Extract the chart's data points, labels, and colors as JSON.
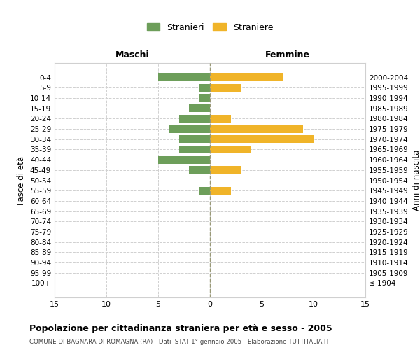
{
  "age_groups": [
    "0-4",
    "5-9",
    "10-14",
    "15-19",
    "20-24",
    "25-29",
    "30-34",
    "35-39",
    "40-44",
    "45-49",
    "50-54",
    "55-59",
    "60-64",
    "65-69",
    "70-74",
    "75-79",
    "80-84",
    "85-89",
    "90-94",
    "95-99",
    "100+"
  ],
  "birth_years": [
    "2000-2004",
    "1995-1999",
    "1990-1994",
    "1985-1989",
    "1980-1984",
    "1975-1979",
    "1970-1974",
    "1965-1969",
    "1960-1964",
    "1955-1959",
    "1950-1954",
    "1945-1949",
    "1940-1944",
    "1935-1939",
    "1930-1934",
    "1925-1929",
    "1920-1924",
    "1915-1919",
    "1910-1914",
    "1905-1909",
    "≤ 1904"
  ],
  "maschi": [
    5,
    1,
    1,
    2,
    3,
    4,
    3,
    3,
    5,
    2,
    0,
    1,
    0,
    0,
    0,
    0,
    0,
    0,
    0,
    0,
    0
  ],
  "femmine": [
    7,
    3,
    0,
    0,
    2,
    9,
    10,
    4,
    0,
    3,
    0,
    2,
    0,
    0,
    0,
    0,
    0,
    0,
    0,
    0,
    0
  ],
  "color_maschi": "#6d9e5a",
  "color_femmine": "#f0b429",
  "title": "Popolazione per cittadinanza straniera per età e sesso - 2005",
  "subtitle": "COMUNE DI BAGNARA DI ROMAGNA (RA) - Dati ISTAT 1° gennaio 2005 - Elaborazione TUTTITALIA.IT",
  "legend_maschi": "Stranieri",
  "legend_femmine": "Straniere",
  "xlim": 15,
  "xlabel_left": "Maschi",
  "xlabel_right": "Femmine",
  "ylabel_left": "Fasce di età",
  "ylabel_right": "Anni di nascita",
  "background_color": "#ffffff",
  "grid_color": "#d0d0d0"
}
